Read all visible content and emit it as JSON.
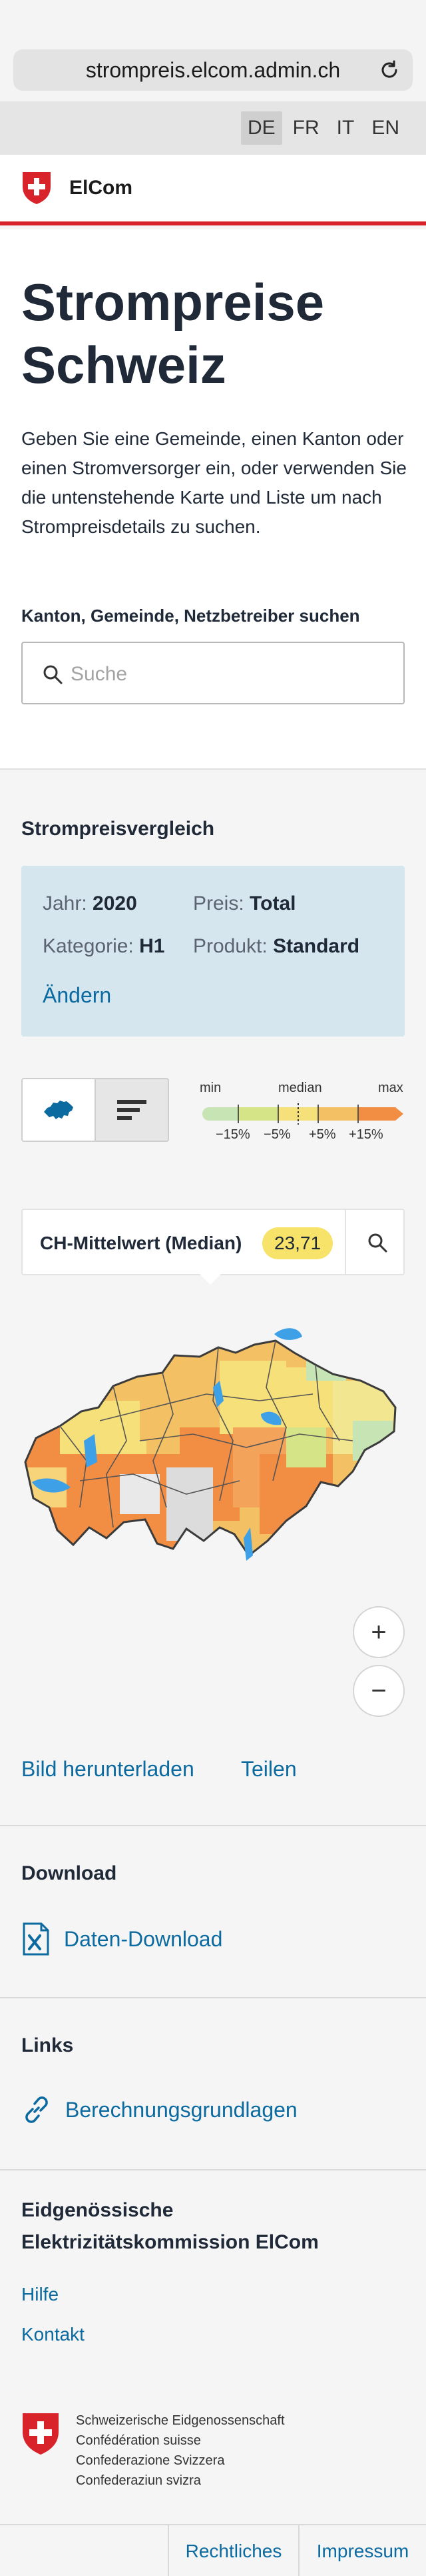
{
  "browser": {
    "url": "strompreis.elcom.admin.ch"
  },
  "languages": [
    {
      "code": "DE",
      "active": true
    },
    {
      "code": "FR",
      "active": false
    },
    {
      "code": "IT",
      "active": false
    },
    {
      "code": "EN",
      "active": false
    }
  ],
  "header": {
    "brand": "ElCom"
  },
  "hero": {
    "title_line1": "Strompreise",
    "title_line2": "Schweiz",
    "intro": "Geben Sie eine Gemeinde, einen Kanton oder einen Stromversorger ein, oder verwenden Sie die untenstehende Karte und Liste um nach Strompreisdetails zu suchen.",
    "search_label": "Kanton, Gemeinde, Netzbetreiber suchen",
    "search_placeholder": "Suche"
  },
  "comparison": {
    "title": "Strompreisvergleich",
    "filters": {
      "year_label": "Jahr:",
      "year_value": "2020",
      "price_label": "Preis:",
      "price_value": "Total",
      "category_label": "Kategorie:",
      "category_value": "H1",
      "product_label": "Produkt:",
      "product_value": "Standard",
      "change_link": "Ändern"
    },
    "legend": {
      "min": "min",
      "median": "median",
      "max": "max",
      "ticks": [
        "−15%",
        "−5%",
        "+5%",
        "+15%"
      ],
      "colors": [
        "#c6e4b4",
        "#d4e487",
        "#f5e07a",
        "#f4c064",
        "#f28d44"
      ]
    },
    "median": {
      "label": "CH-Mittelwert (Median)",
      "value": "23,71"
    },
    "zoom": {
      "in": "+",
      "out": "−"
    },
    "actions": {
      "download_image": "Bild herunterladen",
      "share": "Teilen"
    }
  },
  "download": {
    "title": "Download",
    "link": "Daten-Download"
  },
  "links": {
    "title": "Links",
    "link": "Berechnungsgrundlagen"
  },
  "footer": {
    "title": "Eidgenössische Elektrizitätskommission ElCom",
    "links": [
      "Hilfe",
      "Kontakt"
    ],
    "confederation": [
      "Schweizerische Eidgenossenschaft",
      "Confédération suisse",
      "Confederazione Svizzera",
      "Confederaziun svizra"
    ],
    "legal": [
      "Rechtliches",
      "Impressum"
    ]
  },
  "colors": {
    "accent": "#0b6aa0",
    "swiss_red": "#d8232a",
    "filter_bg": "#d6e6ef",
    "median_badge": "#f7e36a"
  }
}
